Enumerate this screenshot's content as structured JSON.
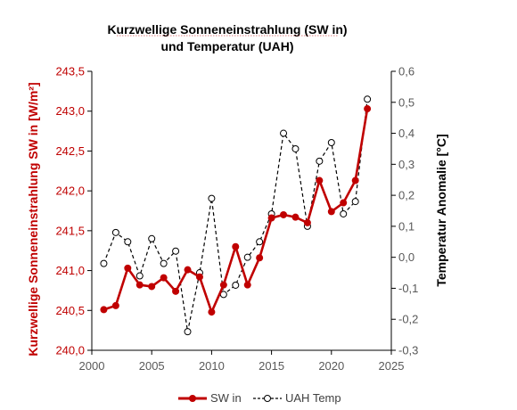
{
  "chart_data": {
    "type": "line",
    "title_line1": "Kurzwellige Sonneneinstrahlung (SW in)",
    "title_line2": "und Temperatur (UAH)",
    "ylabel_left": "Kurzwellige Sonneneinstrahlung SW in   [W/m²]",
    "ylabel_right": "Temperatur Anomalie [°C]",
    "xlim": [
      2000,
      2025
    ],
    "x_ticks": [
      "2000",
      "2005",
      "2010",
      "2015",
      "2020",
      "2025"
    ],
    "ylim_left": [
      240.0,
      243.5
    ],
    "y_ticks_left": [
      "240,0",
      "240,5",
      "241,0",
      "241,5",
      "242,0",
      "242,5",
      "243,0",
      "243,5"
    ],
    "ylim_right": [
      -0.3,
      0.6
    ],
    "y_ticks_right": [
      "-0,3",
      "-0,2",
      "-0,1",
      "0,0",
      "0,1",
      "0,2",
      "0,3",
      "0,4",
      "0,5",
      "0,6"
    ],
    "grid": false,
    "legend_position": "bottom",
    "colors": {
      "sw": "#c00000",
      "uah": "#000000",
      "axis": "#000000"
    },
    "series": [
      {
        "name": "SW in",
        "axis": "left",
        "x": [
          2001,
          2002,
          2003,
          2004,
          2005,
          2006,
          2007,
          2008,
          2009,
          2010,
          2011,
          2012,
          2013,
          2014,
          2015,
          2016,
          2017,
          2018,
          2019,
          2020,
          2021,
          2022,
          2023
        ],
        "values": [
          240.51,
          240.56,
          241.03,
          240.82,
          240.8,
          240.91,
          240.74,
          241.01,
          240.92,
          240.48,
          240.82,
          241.3,
          240.82,
          241.16,
          241.66,
          241.7,
          241.67,
          241.6,
          242.13,
          241.74,
          241.85,
          242.13,
          243.03
        ]
      },
      {
        "name": "UAH Temp",
        "axis": "right",
        "x": [
          2001,
          2002,
          2003,
          2004,
          2005,
          2006,
          2007,
          2008,
          2009,
          2010,
          2011,
          2012,
          2013,
          2014,
          2015,
          2016,
          2017,
          2018,
          2019,
          2020,
          2021,
          2022,
          2023
        ],
        "values": [
          -0.02,
          0.08,
          0.05,
          -0.06,
          0.06,
          -0.02,
          0.02,
          -0.24,
          -0.05,
          0.19,
          -0.12,
          -0.09,
          0.0,
          0.05,
          0.14,
          0.4,
          0.35,
          0.1,
          0.31,
          0.37,
          0.14,
          0.18,
          0.51
        ]
      }
    ]
  }
}
